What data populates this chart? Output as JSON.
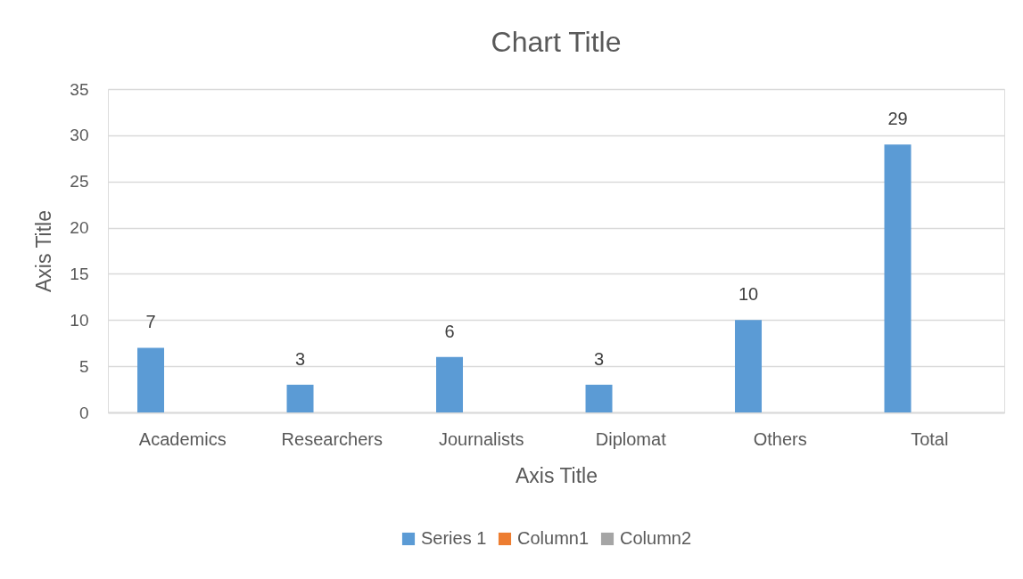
{
  "chart_data": {
    "type": "bar",
    "title": "Chart Title",
    "xlabel": "Axis Title",
    "ylabel": "Axis Title",
    "categories": [
      "Academics",
      "Researchers",
      "Journalists",
      "Diplomat",
      "Others",
      "Total"
    ],
    "series": [
      {
        "name": "Series 1",
        "color": "#5b9bd5",
        "values": [
          7,
          3,
          6,
          3,
          10,
          29
        ]
      },
      {
        "name": "Column1",
        "color": "#ed7d31",
        "values": [
          null,
          null,
          null,
          null,
          null,
          null
        ]
      },
      {
        "name": "Column2",
        "color": "#a5a5a5",
        "values": [
          null,
          null,
          null,
          null,
          null,
          null
        ]
      }
    ],
    "ylim": [
      0,
      35
    ],
    "yticks": [
      0,
      5,
      10,
      15,
      20,
      25,
      30,
      35
    ],
    "grid": "y",
    "legend": "bottom",
    "data_labels": true
  }
}
